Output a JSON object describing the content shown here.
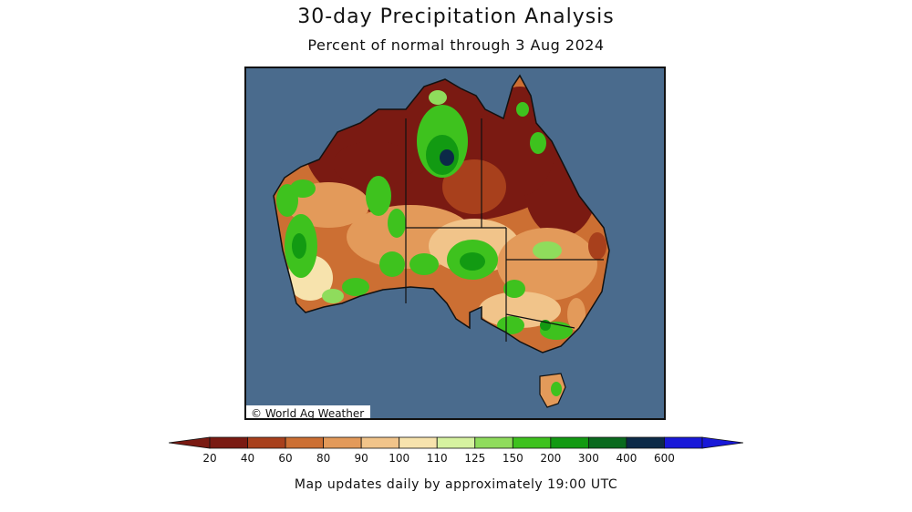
{
  "map": {
    "title": "30-day Precipitation Analysis",
    "subtitle": "Percent of normal through 3 Aug 2024",
    "credit": "© World Ag Weather",
    "footer": "Map updates daily by approximately 19:00 UTC",
    "ocean_color": "#4a6b8d",
    "border_color": "#111111"
  },
  "legend": {
    "labels": [
      "20",
      "40",
      "60",
      "80",
      "90",
      "100",
      "110",
      "125",
      "150",
      "200",
      "300",
      "400",
      "600"
    ],
    "colors": [
      "#7a1a12",
      "#a8401c",
      "#cc6f33",
      "#e39a5a",
      "#f1c48a",
      "#f7e3ad",
      "#d6f2a0",
      "#8fdc5c",
      "#3ec21e",
      "#129a12",
      "#0a6a1e",
      "#0c2a48",
      "#1818d8"
    ]
  }
}
